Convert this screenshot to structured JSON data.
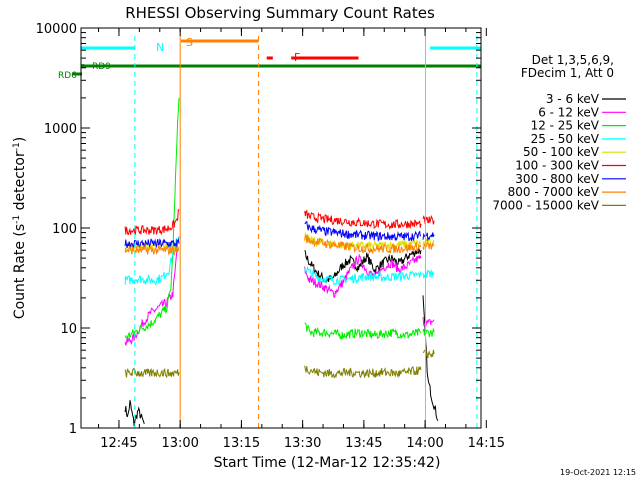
{
  "chart_data": {
    "type": "line",
    "title": "RHESSI Observing Summary Count Rates",
    "xlabel": "Start Time (12-Mar-12 12:35:42)",
    "ylabel": "Count Rate (s⁻¹ detector⁻¹)",
    "ylabel_base": "Count Rate (s",
    "ylabel_mid": " detector",
    "ylabel_end": ")",
    "ylabel_sup": "-1",
    "yscale": "log",
    "ylim": [
      1,
      10000
    ],
    "xlim_minutes": [
      0,
      98
    ],
    "x_ticks": [
      {
        "min": 9.3,
        "label": "12:45"
      },
      {
        "min": 24.3,
        "label": "13:00"
      },
      {
        "min": 39.3,
        "label": "13:15"
      },
      {
        "min": 54.3,
        "label": "13:30"
      },
      {
        "min": 69.3,
        "label": "13:45"
      },
      {
        "min": 84.3,
        "label": "14:00"
      },
      {
        "min": 99.3,
        "label": "14:15"
      }
    ],
    "y_ticks": [
      {
        "value": 1,
        "label": "1"
      },
      {
        "value": 10,
        "label": "10"
      },
      {
        "value": 100,
        "label": "100"
      },
      {
        "value": 1000,
        "label": "1000"
      },
      {
        "value": 10000,
        "label": "10000"
      }
    ],
    "legend": {
      "header": [
        "Det 1,3,5,6,9,",
        "FDecim 1, Att 0"
      ],
      "position": "right"
    },
    "series": [
      {
        "name": "3 - 6 keV",
        "color": "#000000",
        "seg1": [
          [
            10.8,
            1.6
          ],
          [
            11.5,
            1.3
          ],
          [
            12,
            1.8
          ],
          [
            13,
            1.1
          ],
          [
            14,
            1.5
          ],
          [
            15.5,
            1.1
          ]
        ],
        "seg2": [
          [
            54.8,
            55
          ],
          [
            56,
            45
          ],
          [
            58,
            35
          ],
          [
            60,
            30
          ],
          [
            62,
            32
          ],
          [
            64,
            42
          ],
          [
            66,
            48
          ],
          [
            68,
            40
          ],
          [
            70,
            52
          ],
          [
            72,
            38
          ],
          [
            74,
            45
          ],
          [
            76,
            50
          ],
          [
            78,
            44
          ],
          [
            80,
            52
          ],
          [
            82,
            58
          ],
          [
            83.3,
            60
          ]
        ],
        "seg3": [
          [
            83.8,
            20
          ],
          [
            85,
            3
          ],
          [
            86,
            2
          ],
          [
            87.5,
            1.2
          ]
        ]
      },
      {
        "name": "6 - 12 keV",
        "color": "#ff00ff",
        "seg1": [
          [
            10.8,
            7
          ],
          [
            13,
            8
          ],
          [
            15,
            11
          ],
          [
            17,
            14
          ],
          [
            19,
            16
          ],
          [
            21,
            18
          ],
          [
            22.5,
            22
          ],
          [
            23,
            35
          ],
          [
            23.5,
            60
          ],
          [
            24,
            82
          ]
        ],
        "seg2": [
          [
            54.8,
            38
          ],
          [
            56,
            30
          ],
          [
            58,
            28
          ],
          [
            60,
            25
          ],
          [
            62,
            22
          ],
          [
            64,
            28
          ],
          [
            66,
            38
          ],
          [
            68,
            50
          ],
          [
            70,
            38
          ],
          [
            72,
            32
          ],
          [
            74,
            40
          ],
          [
            76,
            45
          ],
          [
            78,
            38
          ],
          [
            80,
            42
          ],
          [
            82,
            48
          ],
          [
            83.3,
            50
          ]
        ],
        "seg3": [
          [
            83.8,
            12
          ],
          [
            85,
            11
          ],
          [
            86.5,
            12
          ]
        ]
      },
      {
        "name": "12 - 25 keV",
        "color": "#00ee00",
        "seg1": [
          [
            10.8,
            8
          ],
          [
            13,
            9
          ],
          [
            15,
            10
          ],
          [
            17,
            11
          ],
          [
            19,
            13
          ],
          [
            21,
            16
          ],
          [
            22,
            25
          ],
          [
            22.5,
            55
          ],
          [
            23,
            200
          ],
          [
            23.5,
            800
          ],
          [
            24,
            2000
          ]
        ],
        "seg2": [
          [
            54.8,
            11
          ],
          [
            56,
            9
          ],
          [
            60,
            9
          ],
          [
            64,
            8.5
          ],
          [
            68,
            9
          ],
          [
            72,
            8.5
          ],
          [
            76,
            9
          ],
          [
            80,
            8.5
          ],
          [
            83.3,
            9
          ]
        ],
        "seg3": [
          [
            83.8,
            9
          ],
          [
            85,
            9
          ],
          [
            86.5,
            9
          ]
        ]
      },
      {
        "name": "25 - 50 keV",
        "color": "#00ffff",
        "seg1": [
          [
            10.8,
            30
          ],
          [
            14,
            31
          ],
          [
            18,
            30
          ],
          [
            20,
            32
          ],
          [
            21.5,
            38
          ],
          [
            22.5,
            55
          ],
          [
            23.5,
            75
          ],
          [
            24,
            80
          ]
        ],
        "seg2": [
          [
            54.8,
            40
          ],
          [
            56,
            36
          ],
          [
            58,
            32
          ],
          [
            62,
            30
          ],
          [
            66,
            31
          ],
          [
            70,
            33
          ],
          [
            74,
            32
          ],
          [
            78,
            33
          ],
          [
            83.3,
            34
          ]
        ],
        "seg3": [
          [
            83.8,
            34
          ],
          [
            85,
            35
          ],
          [
            86.5,
            35
          ]
        ]
      },
      {
        "name": "50 - 100 keV",
        "color": "#dddd00",
        "seg1": [
          [
            10.8,
            65
          ],
          [
            24,
            65
          ]
        ],
        "seg2": [
          [
            54.8,
            82
          ],
          [
            56,
            75
          ],
          [
            60,
            70
          ],
          [
            66,
            66
          ],
          [
            72,
            66
          ],
          [
            78,
            68
          ],
          [
            83.3,
            70
          ]
        ],
        "seg3": [
          [
            83.8,
            70
          ],
          [
            86.5,
            72
          ]
        ]
      },
      {
        "name": "100 - 300 keV",
        "color": "#ff0000",
        "seg1": [
          [
            10.8,
            95
          ],
          [
            14,
            95
          ],
          [
            18,
            95
          ],
          [
            21,
            98
          ],
          [
            22.5,
            105
          ],
          [
            23.5,
            120
          ],
          [
            24,
            150
          ]
        ],
        "seg2": [
          [
            54.8,
            140
          ],
          [
            56,
            130
          ],
          [
            60,
            122
          ],
          [
            64,
            118
          ],
          [
            68,
            113
          ],
          [
            72,
            110
          ],
          [
            76,
            108
          ],
          [
            80,
            110
          ],
          [
            83.3,
            110
          ]
        ],
        "seg3": [
          [
            83.8,
            118
          ],
          [
            86.5,
            118
          ]
        ]
      },
      {
        "name": "300 - 800 keV",
        "color": "#0000ff",
        "seg1": [
          [
            10.8,
            70
          ],
          [
            24,
            70
          ]
        ],
        "seg2": [
          [
            54.8,
            110
          ],
          [
            56,
            100
          ],
          [
            60,
            92
          ],
          [
            64,
            88
          ],
          [
            68,
            85
          ],
          [
            72,
            83
          ],
          [
            76,
            82
          ],
          [
            80,
            82
          ],
          [
            83.3,
            84
          ]
        ],
        "seg3": [
          [
            83.8,
            84
          ],
          [
            86.5,
            86
          ]
        ]
      },
      {
        "name": "800 - 7000 keV",
        "color": "#ff8000",
        "seg1": [
          [
            10.8,
            60
          ],
          [
            24,
            60
          ]
        ],
        "seg2": [
          [
            54.8,
            80
          ],
          [
            56,
            75
          ],
          [
            60,
            70
          ],
          [
            64,
            66
          ],
          [
            68,
            63
          ],
          [
            72,
            62
          ],
          [
            76,
            62
          ],
          [
            80,
            63
          ],
          [
            83.3,
            65
          ]
        ],
        "seg3": [
          [
            83.8,
            65
          ],
          [
            86.5,
            66
          ]
        ]
      },
      {
        "name": "7000 - 15000 keV",
        "color": "#808000",
        "seg1": [
          [
            10.8,
            3.5
          ],
          [
            13,
            3.6
          ],
          [
            16,
            3.5
          ],
          [
            19,
            3.6
          ],
          [
            22,
            3.5
          ],
          [
            24,
            3.6
          ]
        ],
        "seg2": [
          [
            54.8,
            4
          ],
          [
            58,
            3.6
          ],
          [
            62,
            3.5
          ],
          [
            66,
            3.6
          ],
          [
            70,
            3.5
          ],
          [
            74,
            3.6
          ],
          [
            78,
            3.5
          ],
          [
            83.3,
            3.8
          ]
        ],
        "seg3": [
          [
            83.8,
            5.5
          ],
          [
            86.5,
            5.5
          ]
        ]
      }
    ],
    "annotations": [
      {
        "label": "N",
        "color": "#00ffff"
      },
      {
        "label": "S",
        "color": "#ff8000"
      },
      {
        "label": "F",
        "color": "#ff0000"
      },
      {
        "label": "RD9",
        "color": "#008000"
      },
      {
        "label": "RD6",
        "color": "#008000"
      }
    ],
    "night_bars": [
      [
        0,
        13.2
      ],
      [
        85.5,
        98
      ]
    ],
    "saa_bar": [
      24.5,
      43.5
    ],
    "flare_bars": [
      [
        45.5,
        47
      ],
      [
        51.5,
        68
      ]
    ],
    "rd_bar": [
      0,
      98
    ],
    "v_lines": [
      {
        "min": 0,
        "color": "#00ffff",
        "style": "solid"
      },
      {
        "min": 13.2,
        "color": "#00ffff",
        "style": "dashed"
      },
      {
        "min": 24.3,
        "color": "#ff8000",
        "style": "solid"
      },
      {
        "min": 43.5,
        "color": "#ff8000",
        "style": "dashed"
      },
      {
        "min": 84.4,
        "color": "#00ffff",
        "style": "solid"
      },
      {
        "min": 97.0,
        "color": "#00ffff",
        "style": "dashed"
      }
    ]
  },
  "footer": {
    "timestamp": "19-Oct-2021 12:15"
  }
}
